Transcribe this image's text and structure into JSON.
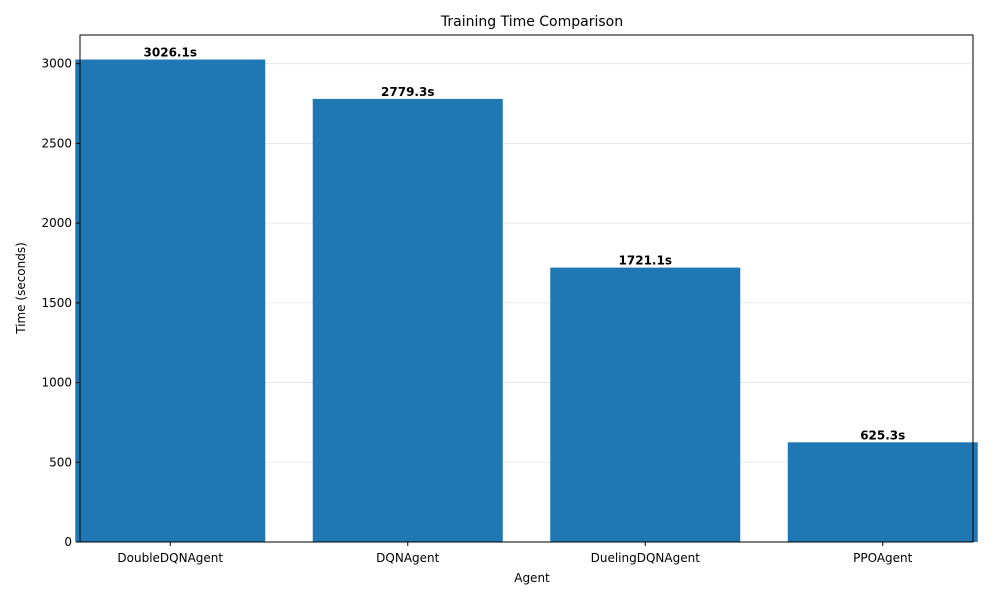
{
  "chart_data": {
    "type": "bar",
    "title": "Training Time Comparison",
    "xlabel": "Agent",
    "ylabel": "Time (seconds)",
    "categories": [
      "DoubleDQNAgent",
      "DQNAgent",
      "DuelingDQNAgent",
      "PPOAgent"
    ],
    "values": [
      3026.1,
      2779.3,
      1721.1,
      625.3
    ],
    "value_labels": [
      "3026.1s",
      "2779.3s",
      "1721.1s",
      "625.3s"
    ],
    "yticks": [
      0,
      500,
      1000,
      1500,
      2000,
      2500,
      3000
    ],
    "ylim": [
      0,
      3180
    ],
    "grid": "y-axis",
    "bar_color": "#1f77b4"
  }
}
